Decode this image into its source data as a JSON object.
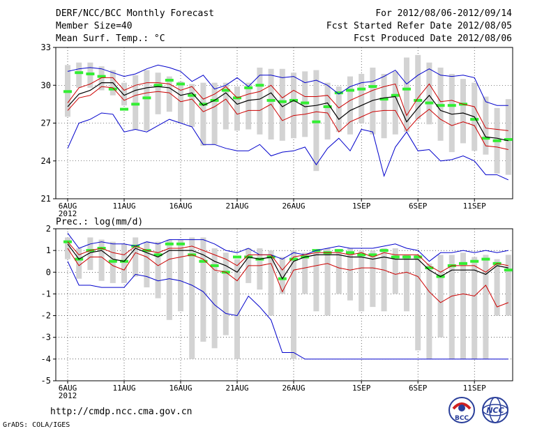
{
  "header": {
    "title": "DERF/NCC/BCC Monthly Forecast",
    "member_size": "Member Size=40",
    "variable": "Mean Surf. Temp.: °C",
    "forecast_period": "For 2012/08/06-2012/09/14",
    "fcst_started": "Fcst Started Refer Date 2012/08/05",
    "fcst_produced": "Fcst Produced Date 2012/08/06"
  },
  "footer": {
    "url": "http://cmdp.ncc.cma.gov.cn",
    "grads": "GrADS: COLA/IGES",
    "logo_bcc": "BCC",
    "logo_ncc": "NCC"
  },
  "colors": {
    "envelope": "#0000cc",
    "spread": "#cc0000",
    "mean": "#000000",
    "median": "#33ee33",
    "bar": "#d3d3d3",
    "grid": "#000000"
  },
  "chart_data": [
    {
      "type": "line",
      "title": "",
      "xlabel": "",
      "ylabel": "Mean Surf. Temp.: °C",
      "ylim": [
        21,
        33
      ],
      "yticks": [
        21,
        24,
        27,
        30,
        33
      ],
      "xtick_labels": [
        "6AUG",
        "11AUG",
        "16AUG",
        "21AUG",
        "26AUG",
        "1SEP",
        "6SEP",
        "11SEP"
      ],
      "xtick_days": [
        0,
        5,
        10,
        15,
        20,
        26,
        31,
        36
      ],
      "year_label": "2012",
      "days": 40,
      "series": [
        {
          "name": "max",
          "role": "envelope-max",
          "values": [
            31.1,
            31.3,
            31.4,
            31.3,
            31.0,
            30.7,
            30.9,
            31.3,
            31.6,
            31.4,
            31.1,
            30.3,
            30.8,
            29.7,
            30.0,
            30.6,
            29.9,
            30.8,
            30.8,
            30.6,
            30.7,
            30.2,
            30.4,
            30.0,
            29.3,
            29.9,
            30.2,
            30.3,
            30.7,
            31.2,
            30.1,
            30.8,
            31.3,
            30.8,
            30.7,
            30.8,
            30.6,
            28.7,
            28.4,
            28.4
          ]
        },
        {
          "name": "upper",
          "role": "spread",
          "values": [
            28.6,
            29.8,
            30.1,
            30.6,
            30.6,
            29.6,
            30.0,
            30.2,
            30.2,
            30.1,
            29.6,
            29.9,
            28.9,
            29.3,
            29.9,
            29.0,
            29.3,
            29.5,
            30.0,
            29.0,
            29.6,
            29.1,
            29.1,
            29.2,
            28.2,
            28.8,
            29.2,
            29.6,
            29.9,
            30.1,
            27.6,
            29.0,
            30.1,
            28.7,
            28.8,
            28.5,
            28.3,
            26.6,
            26.5,
            26.4
          ]
        },
        {
          "name": "mean",
          "role": "ensemble-mean",
          "values": [
            28.3,
            29.3,
            29.6,
            30.2,
            30.2,
            29.2,
            29.6,
            29.8,
            29.9,
            29.8,
            29.2,
            29.4,
            28.4,
            28.8,
            29.4,
            28.5,
            28.8,
            28.9,
            29.4,
            28.3,
            28.8,
            28.3,
            28.4,
            28.6,
            27.3,
            28.0,
            28.4,
            28.8,
            29.0,
            29.1,
            27.1,
            28.2,
            29.2,
            28.0,
            27.7,
            27.8,
            27.5,
            25.9,
            25.8,
            25.6
          ]
        },
        {
          "name": "lower",
          "role": "spread",
          "values": [
            28.0,
            29.0,
            29.2,
            29.9,
            29.8,
            28.8,
            29.2,
            29.4,
            29.5,
            29.4,
            28.7,
            28.9,
            27.9,
            28.3,
            28.9,
            27.7,
            28.0,
            28.0,
            28.5,
            27.2,
            27.6,
            27.7,
            27.9,
            27.8,
            26.3,
            27.1,
            27.5,
            27.9,
            28.0,
            28.0,
            26.4,
            27.4,
            28.1,
            27.3,
            26.8,
            27.1,
            26.8,
            25.2,
            25.1,
            24.9
          ]
        },
        {
          "name": "min",
          "role": "envelope-min",
          "values": [
            25.0,
            27.0,
            27.3,
            27.8,
            27.7,
            26.3,
            26.5,
            26.3,
            26.8,
            27.3,
            27.0,
            26.7,
            25.3,
            25.3,
            25.0,
            24.8,
            24.8,
            25.3,
            24.4,
            24.7,
            24.8,
            25.1,
            23.7,
            25.0,
            25.8,
            24.8,
            26.5,
            26.3,
            22.8,
            25.1,
            26.3,
            24.8,
            24.9,
            24.0,
            24.1,
            24.4,
            24.0,
            22.9,
            22.9,
            22.5
          ]
        },
        {
          "name": "median",
          "role": "median-marker",
          "values": [
            29.5,
            31.0,
            30.9,
            30.7,
            29.7,
            28.1,
            28.5,
            29.0,
            30.0,
            30.4,
            30.1,
            29.2,
            28.5,
            28.8,
            29.6,
            29.0,
            29.8,
            30.0,
            28.8,
            28.7,
            28.8,
            28.6,
            27.1,
            28.3,
            29.4,
            29.6,
            29.7,
            29.9,
            28.9,
            29.2,
            29.7,
            28.8,
            28.6,
            28.4,
            28.4,
            28.5,
            27.3,
            25.8,
            25.6,
            25.7
          ]
        },
        {
          "name": "bar_top",
          "role": "range-bar",
          "values": [
            31.6,
            31.8,
            31.8,
            31.5,
            31.2,
            30.2,
            30.8,
            31.2,
            31.0,
            30.7,
            30.3,
            30.1,
            30.2,
            30.2,
            30.2,
            29.9,
            30.2,
            31.4,
            31.3,
            31.3,
            31.0,
            31.1,
            31.2,
            30.2,
            29.9,
            30.7,
            30.9,
            31.4,
            30.9,
            31.1,
            32.2,
            32.4,
            31.8,
            31.4,
            30.9,
            30.5,
            30.2,
            29.1,
            28.2,
            28.9
          ]
        },
        {
          "name": "bar_bottom",
          "role": "range-bar",
          "values": [
            27.5,
            29.8,
            29.8,
            29.6,
            29.2,
            28.4,
            26.5,
            26.4,
            27.7,
            27.9,
            27.0,
            26.7,
            25.2,
            25.3,
            26.5,
            26.4,
            26.5,
            26.1,
            25.7,
            25.6,
            25.8,
            25.9,
            23.2,
            25.7,
            26.3,
            26.1,
            27.0,
            26.1,
            25.8,
            26.1,
            26.3,
            27.3,
            26.9,
            25.6,
            24.7,
            25.4,
            24.8,
            24.5,
            23.0,
            22.9
          ]
        }
      ]
    },
    {
      "type": "line",
      "title": "Prec.: log(mm/d)",
      "xlabel": "",
      "ylabel": "Prec.: log(mm/d)",
      "ylim": [
        -5,
        2
      ],
      "yticks": [
        -5,
        -4,
        -3,
        -2,
        -1,
        0,
        1,
        2
      ],
      "xtick_labels": [
        "6AUG",
        "11AUG",
        "16AUG",
        "21AUG",
        "26AUG",
        "1SEP",
        "6SEP",
        "11SEP"
      ],
      "xtick_days": [
        0,
        5,
        10,
        15,
        20,
        26,
        31,
        36
      ],
      "year_label": "2012",
      "days": 40,
      "series": [
        {
          "name": "max",
          "role": "envelope-max",
          "values": [
            1.8,
            1.1,
            1.3,
            1.4,
            1.3,
            1.3,
            1.2,
            1.4,
            1.3,
            1.5,
            1.5,
            1.5,
            1.5,
            1.3,
            1.0,
            0.9,
            1.1,
            0.8,
            0.8,
            0.6,
            0.9,
            0.8,
            1.0,
            1.1,
            1.2,
            1.1,
            1.1,
            1.1,
            1.2,
            1.3,
            1.1,
            1.0,
            0.5,
            0.9,
            0.9,
            1.0,
            0.9,
            1.0,
            0.9,
            1.0
          ]
        },
        {
          "name": "upper",
          "role": "spread",
          "values": [
            1.4,
            0.8,
            1.0,
            1.1,
            0.9,
            0.8,
            1.2,
            1.0,
            0.9,
            1.1,
            1.1,
            1.2,
            1.0,
            0.8,
            0.6,
            0.3,
            0.8,
            0.8,
            0.8,
            0.1,
            0.7,
            0.8,
            0.9,
            0.9,
            0.9,
            0.8,
            0.9,
            0.7,
            0.9,
            0.8,
            0.8,
            0.8,
            0.3,
            0.0,
            0.3,
            0.3,
            0.3,
            0.0,
            0.4,
            0.3
          ]
        },
        {
          "name": "mean",
          "role": "ensemble-mean",
          "values": [
            1.3,
            0.6,
            0.9,
            1.0,
            0.6,
            0.5,
            1.1,
            0.9,
            0.7,
            1.0,
            1.0,
            1.0,
            0.8,
            0.5,
            0.3,
            0.0,
            0.7,
            0.6,
            0.7,
            -0.3,
            0.5,
            0.7,
            0.8,
            0.8,
            0.8,
            0.7,
            0.7,
            0.6,
            0.7,
            0.6,
            0.6,
            0.6,
            0.1,
            -0.2,
            0.1,
            0.1,
            0.1,
            -0.1,
            0.3,
            0.2
          ]
        },
        {
          "name": "lower",
          "role": "spread",
          "values": [
            1.1,
            0.3,
            0.7,
            0.7,
            0.3,
            0.1,
            0.9,
            0.7,
            0.3,
            0.6,
            0.7,
            0.8,
            0.6,
            0.1,
            0.0,
            -0.4,
            0.3,
            0.3,
            0.4,
            -0.9,
            0.1,
            0.2,
            0.3,
            0.4,
            0.2,
            0.1,
            0.2,
            0.2,
            0.1,
            -0.1,
            0.0,
            -0.2,
            -0.9,
            -1.4,
            -1.1,
            -1.0,
            -1.1,
            -0.6,
            -1.6,
            -1.4
          ]
        },
        {
          "name": "min",
          "role": "envelope-min",
          "values": [
            0.5,
            -0.6,
            -0.6,
            -0.7,
            -0.7,
            -0.7,
            -0.1,
            -0.2,
            -0.4,
            -0.3,
            -0.4,
            -0.6,
            -0.9,
            -1.5,
            -1.9,
            -2.0,
            -1.1,
            -1.6,
            -2.2,
            -3.7,
            -3.7,
            -4.0,
            -4.0,
            -4.0,
            -4.0,
            -4.0,
            -4.0,
            -4.0,
            -4.0,
            -4.0,
            -4.0,
            -4.0,
            -4.0,
            -4.0,
            -4.0,
            -4.0,
            -4.0,
            -4.0,
            -4.0,
            -4.0
          ]
        },
        {
          "name": "median",
          "role": "median-marker",
          "values": [
            1.4,
            0.6,
            1.0,
            1.1,
            0.5,
            0.5,
            1.2,
            1.0,
            0.8,
            1.3,
            1.3,
            0.8,
            0.5,
            0.3,
            0.0,
            0.7,
            0.7,
            0.6,
            0.7,
            -0.3,
            0.6,
            0.7,
            1.0,
            0.9,
            1.0,
            0.9,
            0.8,
            0.8,
            1.0,
            0.7,
            0.7,
            0.7,
            0.2,
            -0.2,
            0.3,
            0.4,
            0.5,
            0.6,
            0.4,
            0.1
          ]
        },
        {
          "name": "bar_top",
          "role": "range-bar",
          "values": [
            1.6,
            1.1,
            1.6,
            1.5,
            1.4,
            1.3,
            1.6,
            1.4,
            1.4,
            1.5,
            1.5,
            1.6,
            1.6,
            1.1,
            0.9,
            0.6,
            1.1,
            1.1,
            1.0,
            0.7,
            1.0,
            0.9,
            1.0,
            1.1,
            1.0,
            1.1,
            1.0,
            1.0,
            1.1,
            1.1,
            0.8,
            0.8,
            0.4,
            0.8,
            0.8,
            0.9,
            0.7,
            0.8,
            0.6,
            0.8
          ]
        },
        {
          "name": "bar_bottom",
          "role": "range-bar",
          "values": [
            0.6,
            -0.3,
            0.1,
            -0.4,
            -0.5,
            -0.5,
            -0.2,
            -0.7,
            -1.2,
            -2.2,
            -1.8,
            -4.0,
            -3.2,
            -3.5,
            -2.9,
            -4.0,
            -0.5,
            -0.8,
            -2.0,
            -1.0,
            -4.0,
            -1.0,
            -1.8,
            -2.0,
            -1.0,
            -1.3,
            -1.8,
            -1.6,
            -1.8,
            -1.0,
            -1.8,
            -3.6,
            -4.0,
            -3.0,
            -4.0,
            -4.0,
            -4.0,
            -4.0,
            -2.0,
            -2.0
          ]
        }
      ]
    }
  ]
}
